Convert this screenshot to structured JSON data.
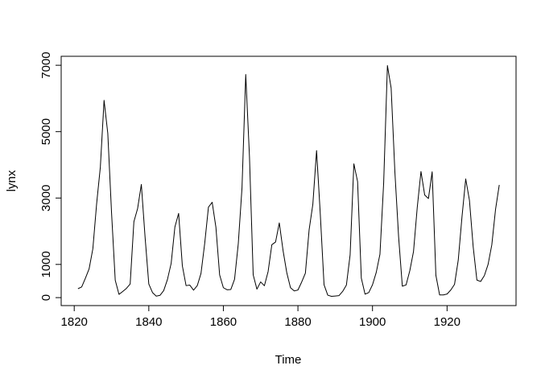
{
  "chart_data": {
    "type": "line",
    "title": "",
    "xlabel": "Time",
    "ylabel": "lynx",
    "x_start": 1821,
    "x_step": 1,
    "x_ticks": [
      1820,
      1840,
      1860,
      1880,
      1900,
      1920
    ],
    "y_ticks": [
      0,
      1000,
      3000,
      5000,
      7000
    ],
    "xlim": [
      1816.5,
      1938.5
    ],
    "ylim": [
      -240,
      7270
    ],
    "grid": "off",
    "legend": "none",
    "line_color": "#000000",
    "background": "#ffffff",
    "series": [
      {
        "name": "lynx",
        "values": [
          269,
          321,
          585,
          871,
          1475,
          2821,
          3928,
          5943,
          4950,
          2577,
          523,
          98,
          184,
          279,
          409,
          2285,
          2685,
          3409,
          1824,
          409,
          151,
          45,
          68,
          213,
          546,
          1033,
          2129,
          2536,
          957,
          361,
          377,
          225,
          360,
          731,
          1638,
          2725,
          2871,
          2119,
          684,
          299,
          236,
          245,
          552,
          1623,
          3311,
          6721,
          4254,
          687,
          255,
          473,
          358,
          784,
          1594,
          1676,
          2251,
          1426,
          756,
          299,
          201,
          229,
          469,
          736,
          2042,
          2811,
          4431,
          2511,
          389,
          73,
          39,
          49,
          59,
          188,
          377,
          1292,
          4031,
          3495,
          587,
          105,
          153,
          387,
          758,
          1307,
          3465,
          6991,
          6313,
          3794,
          1836,
          345,
          382,
          808,
          1388,
          2713,
          3800,
          3091,
          2985,
          3790,
          674,
          81,
          80,
          108,
          229,
          399,
          1132,
          2432,
          3574,
          2935,
          1537,
          529,
          485,
          662,
          1000,
          1590,
          2657,
          3396
        ]
      }
    ]
  }
}
